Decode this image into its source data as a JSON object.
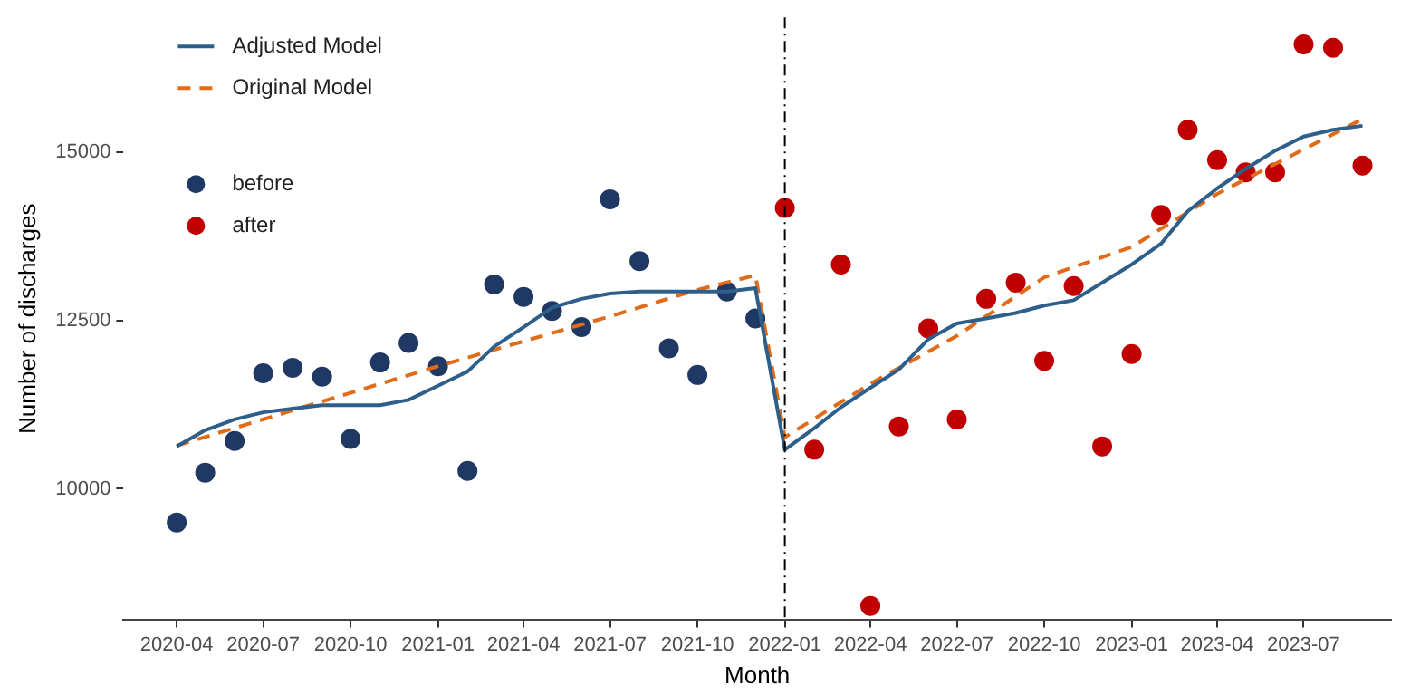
{
  "chart_data": {
    "type": "scatter",
    "xlabel": "Month",
    "ylabel": "Number of discharges",
    "legend": "top left",
    "grid": false,
    "marker": "circle",
    "xlim": [
      "2020-02-05",
      "2023-10-01"
    ],
    "xticks": [
      "2020-04",
      "2020-07",
      "2020-10",
      "2021-01",
      "2021-04",
      "2021-07",
      "2021-10",
      "2022-01",
      "2022-04",
      "2022-07",
      "2022-10",
      "2023-01",
      "2023-04",
      "2023-07"
    ],
    "ylim": [
      8050,
      17000
    ],
    "yticks": [
      10000,
      12500,
      15000
    ],
    "ref_lines": [
      {
        "axis": "x",
        "value": "2022-01",
        "line_style": "dashdot",
        "color": "#000000"
      }
    ],
    "series": [
      {
        "name": "Adjusted Model",
        "type": "line",
        "color": "#2e5f8a",
        "line_style": "solid",
        "marker": "none",
        "x": [
          "2020-04",
          "2020-05",
          "2020-06",
          "2020-07",
          "2020-08",
          "2020-09",
          "2020-10",
          "2020-11",
          "2020-12",
          "2021-01",
          "2021-02",
          "2021-03",
          "2021-04",
          "2021-05",
          "2021-06",
          "2021-07",
          "2021-08",
          "2021-09",
          "2021-10",
          "2021-11",
          "2021-12",
          "2022-01",
          "2022-02",
          "2022-03",
          "2022-04",
          "2022-05",
          "2022-06",
          "2022-07",
          "2022-08",
          "2022-09",
          "2022-10",
          "2022-11",
          "2022-12",
          "2023-01",
          "2023-02",
          "2023-03",
          "2023-04",
          "2023-05",
          "2023-06",
          "2023-07",
          "2023-08",
          "2023-09"
        ],
        "values": [
          10630,
          10870,
          11030,
          11135,
          11190,
          11240,
          11240,
          11240,
          11320,
          11530,
          11740,
          12110,
          12400,
          12690,
          12820,
          12900,
          12930,
          12930,
          12930,
          12930,
          12980,
          10580,
          10900,
          11210,
          11500,
          11770,
          12220,
          12455,
          12530,
          12610,
          12720,
          12800,
          13060,
          13330,
          13640,
          14120,
          14460,
          14750,
          15020,
          15230,
          15330,
          15390
        ]
      },
      {
        "name": "Original Model",
        "type": "line",
        "color": "#e06c1a",
        "line_style": "dashed",
        "marker": "none",
        "x": [
          "2020-04",
          "2020-10",
          "2021-01",
          "2021-04",
          "2021-07",
          "2021-10",
          "2021-12",
          "2022-01",
          "2022-04",
          "2022-07",
          "2022-10",
          "2023-01",
          "2023-04",
          "2023-07",
          "2023-09"
        ],
        "values": [
          10640,
          11425,
          11820,
          12190,
          12560,
          12955,
          13170,
          10765,
          11560,
          12270,
          13140,
          13590,
          14380,
          15040,
          15490
        ]
      },
      {
        "name": "before",
        "color": "#1f3864",
        "x": [
          "2020-04",
          "2020-05",
          "2020-06",
          "2020-07",
          "2020-08",
          "2020-09",
          "2020-10",
          "2020-11",
          "2020-12",
          "2021-01",
          "2021-02",
          "2021-03",
          "2021-04",
          "2021-05",
          "2021-06",
          "2021-07",
          "2021-08",
          "2021-09",
          "2021-10",
          "2021-11",
          "2021-12"
        ],
        "values": [
          9500,
          10240,
          10710,
          11715,
          11795,
          11665,
          10740,
          11875,
          12165,
          11820,
          10265,
          13035,
          12850,
          12640,
          12400,
          14300,
          13380,
          12085,
          11690,
          12930,
          12530
        ]
      },
      {
        "name": "after",
        "color": "#c00000",
        "x": [
          "2022-01",
          "2022-02",
          "2022-03",
          "2022-04",
          "2022-05",
          "2022-06",
          "2022-07",
          "2022-08",
          "2022-09",
          "2022-10",
          "2022-11",
          "2022-12",
          "2023-01",
          "2023-02",
          "2023-03",
          "2023-04",
          "2023-05",
          "2023-06",
          "2023-07",
          "2023-08",
          "2023-09"
        ],
        "values": [
          14170,
          10580,
          13330,
          8260,
          10925,
          12380,
          11030,
          12820,
          13060,
          11900,
          13010,
          10630,
          12000,
          14065,
          15330,
          14880,
          14700,
          14700,
          16600,
          16550,
          14800
        ]
      }
    ]
  }
}
